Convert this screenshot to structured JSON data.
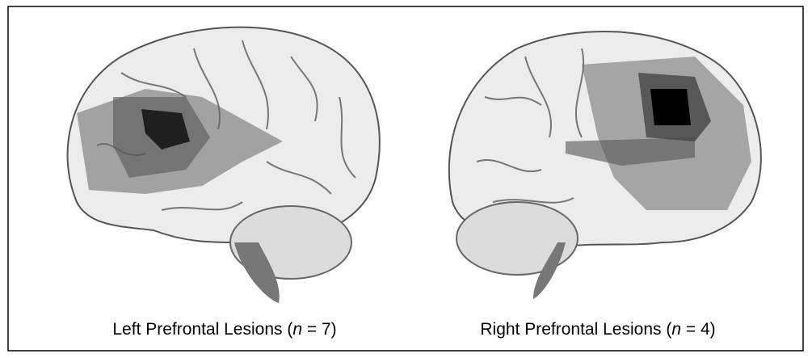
{
  "panels": [
    {
      "caption": {
        "before": "Left Prefrontal Lesions (",
        "italic": "n",
        "after": " = 7)"
      }
    },
    {
      "caption": {
        "before": "Right Prefrontal Lesions (",
        "italic": "n",
        "after": " = 4)"
      }
    }
  ]
}
